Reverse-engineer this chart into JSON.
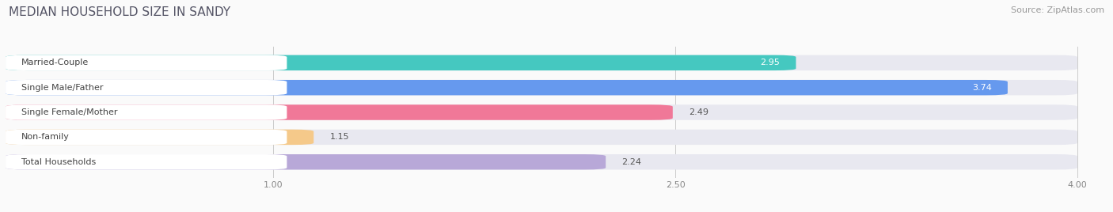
{
  "title": "MEDIAN HOUSEHOLD SIZE IN SANDY",
  "source": "Source: ZipAtlas.com",
  "categories": [
    "Married-Couple",
    "Single Male/Father",
    "Single Female/Mother",
    "Non-family",
    "Total Households"
  ],
  "values": [
    2.95,
    3.74,
    2.49,
    1.15,
    2.24
  ],
  "bar_colors": [
    "#45C8C0",
    "#6699EE",
    "#F07898",
    "#F5C98A",
    "#B8A8D8"
  ],
  "bg_track_color": "#E8E8F0",
  "xlim_data": [
    0,
    4.0
  ],
  "x_ticks": [
    1.0,
    2.5,
    4.0
  ],
  "x_tick_labels": [
    "1.00",
    "2.50",
    "4.00"
  ],
  "title_fontsize": 11,
  "source_fontsize": 8,
  "label_fontsize": 8,
  "value_fontsize": 8,
  "bar_height": 0.62,
  "bar_gap": 1.0,
  "background_color": "#FAFAFA",
  "label_box_color": "#FFFFFF",
  "label_text_colors": [
    "#444444",
    "#444444",
    "#444444",
    "#444444",
    "#444444"
  ],
  "value_text_colors": [
    "#FFFFFF",
    "#FFFFFF",
    "#333333",
    "#333333",
    "#333333"
  ],
  "value_inside": [
    true,
    true,
    false,
    false,
    false
  ]
}
